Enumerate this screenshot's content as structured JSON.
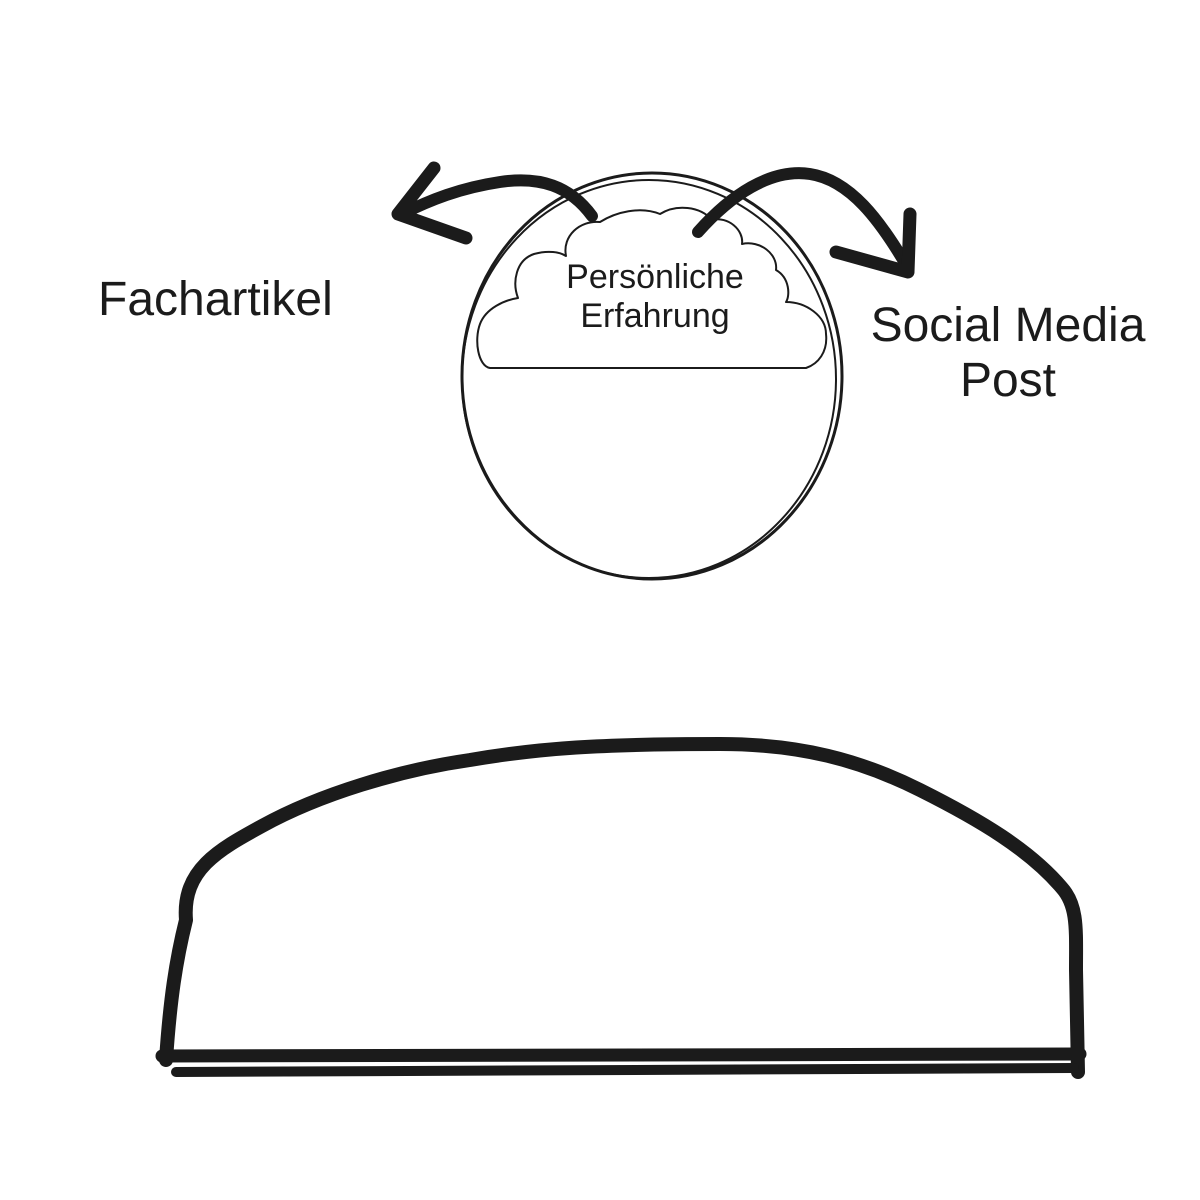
{
  "labels": {
    "left": "Fachartikel",
    "right_line1": "Social Media",
    "right_line2": "Post",
    "cloud_line1": "Persönliche",
    "cloud_line2": "Erfahrung"
  },
  "icons": {
    "head": "head-circle",
    "thought": "cloud-icon",
    "arrow_left": "curved-arrow-left-icon",
    "arrow_right": "curved-arrow-right-icon",
    "body": "shoulders-outline"
  },
  "colors": {
    "ink": "#1b1b1b",
    "background": "#ffffff"
  }
}
